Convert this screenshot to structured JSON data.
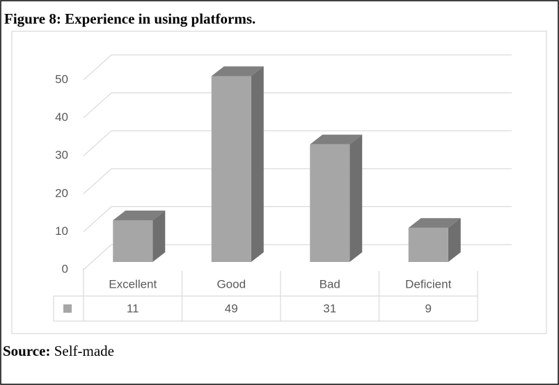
{
  "chart_data": {
    "type": "bar",
    "title": "Figure 8: Experience in using platforms.",
    "categories": [
      "Excellent",
      "Good",
      "Bad",
      "Deficient"
    ],
    "values": [
      11,
      49,
      31,
      9
    ],
    "color": "#a6a6a6",
    "ylim": [
      0,
      50
    ],
    "yticks": [
      0,
      10,
      20,
      30,
      40,
      50
    ],
    "grid": true
  },
  "source": {
    "label": "Source:",
    "text": "Self-made"
  }
}
